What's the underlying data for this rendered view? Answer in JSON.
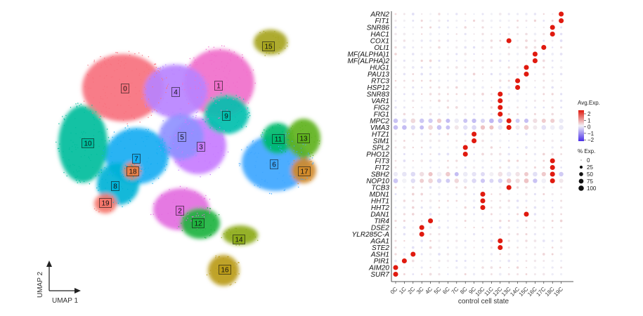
{
  "chart_data": [
    {
      "type": "scatter",
      "subtype": "umap",
      "xlabel": "UMAP 1",
      "ylabel": "UMAP 2",
      "clusters": [
        {
          "id": "0",
          "color": "#F7727E"
        },
        {
          "id": "1",
          "color": "#F06FCB"
        },
        {
          "id": "2",
          "color": "#E36CE0"
        },
        {
          "id": "3",
          "color": "#C77CFF"
        },
        {
          "id": "4",
          "color": "#B983FF"
        },
        {
          "id": "5",
          "color": "#8F91FF"
        },
        {
          "id": "6",
          "color": "#3EA6FF"
        },
        {
          "id": "7",
          "color": "#14ADF2"
        },
        {
          "id": "8",
          "color": "#00B2D6"
        },
        {
          "id": "9",
          "color": "#00BFAE"
        },
        {
          "id": "10",
          "color": "#00BD9C"
        },
        {
          "id": "11",
          "color": "#00BA6E"
        },
        {
          "id": "12",
          "color": "#1FB33F"
        },
        {
          "id": "13",
          "color": "#5EB21C"
        },
        {
          "id": "14",
          "color": "#8CAA1A"
        },
        {
          "id": "15",
          "color": "#A6A41E"
        },
        {
          "id": "16",
          "color": "#BA9B18"
        },
        {
          "id": "17",
          "color": "#D18A2A"
        },
        {
          "id": "18",
          "color": "#E7804A"
        },
        {
          "id": "19",
          "color": "#F5766B"
        }
      ]
    },
    {
      "type": "dotplot",
      "xlabel": "control cell state",
      "categories": [
        "0C",
        "1C",
        "2C",
        "3C",
        "4C",
        "5C",
        "6C",
        "7C",
        "8C",
        "9C",
        "10C",
        "11C",
        "12C",
        "13C",
        "14C",
        "15C",
        "16C",
        "17C",
        "18C",
        "19C"
      ],
      "genes": [
        "ARN2",
        "FIT1",
        "SNR86",
        "HAC1",
        "COX1",
        "OLI1",
        "MF(ALPHA)1",
        "MF(ALPHA)2",
        "HUG1",
        "PAU13",
        "RTC3",
        "HSP12",
        "SNR83",
        "VAR1",
        "FIG2",
        "FIG1",
        "MPC2",
        "VMA3",
        "HTZ1",
        "SIM1",
        "SPL2",
        "PHO12",
        "FIT3",
        "FIT2",
        "SBH2",
        "NOP10",
        "TCB3",
        "MDN1",
        "HHT1",
        "HHT2",
        "DAN1",
        "TIR4",
        "DSE2",
        "YLR285C-A",
        "AGA1",
        "STE2",
        "ASH1",
        "PIR1",
        "AIM20",
        "SUR7"
      ],
      "marker_cluster": [
        19,
        19,
        18,
        18,
        13,
        17,
        16,
        16,
        15,
        15,
        14,
        14,
        12,
        12,
        12,
        12,
        13,
        13,
        9,
        9,
        8,
        8,
        18,
        18,
        18,
        18,
        13,
        10,
        10,
        10,
        15,
        4,
        3,
        3,
        12,
        12,
        2,
        1,
        0,
        0
      ],
      "legend": {
        "color_title": "Avg.Exp.",
        "color_ticks": [
          2,
          1,
          0,
          -1,
          -2
        ],
        "color_scale": {
          "low": "#4a2ee8",
          "mid": "#f2f2f7",
          "high": "#e01a0f"
        },
        "size_title": "% Exp.",
        "size_ticks": [
          0,
          25,
          50,
          75,
          100
        ]
      }
    }
  ]
}
